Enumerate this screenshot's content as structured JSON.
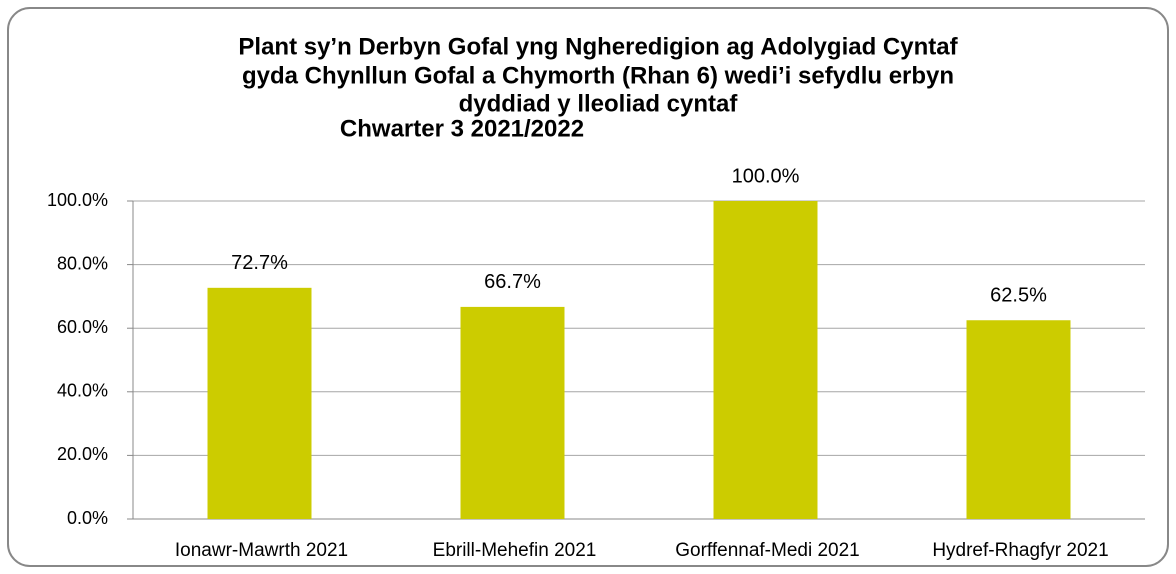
{
  "chart_data": {
    "type": "bar",
    "title": [
      "Plant sy’n Derbyn Gofal yng Ngheredigion ag Adolygiad Cyntaf",
      "gyda Chynllun Gofal a Chymorth (Rhan 6) wedi’i sefydlu erbyn",
      "dyddiad y lleoliad cyntaf"
    ],
    "subtitle": "Chwarter 3  2021/2022",
    "categories": [
      "Ionawr-Mawrth 2021",
      "Ebrill-Mehefin 2021",
      "Gorffennaf-Medi 2021",
      "Hydref-Rhagfyr 2021"
    ],
    "values": [
      72.7,
      66.7,
      100,
      62.5
    ],
    "value_labels": [
      "72.7%",
      "66.7%",
      "100.0%",
      "62.5%"
    ],
    "color": "#cccc00",
    "ylim": [
      0,
      100
    ],
    "yticks": [
      {
        "value": 0,
        "label": "0.0%"
      },
      {
        "value": 20,
        "label": "20.0%"
      },
      {
        "value": 40,
        "label": "40.0%"
      },
      {
        "value": 60,
        "label": "60.0%"
      },
      {
        "value": 80,
        "label": "80.0%"
      },
      {
        "value": 100,
        "label": "100.0%"
      }
    ],
    "grid": true
  }
}
